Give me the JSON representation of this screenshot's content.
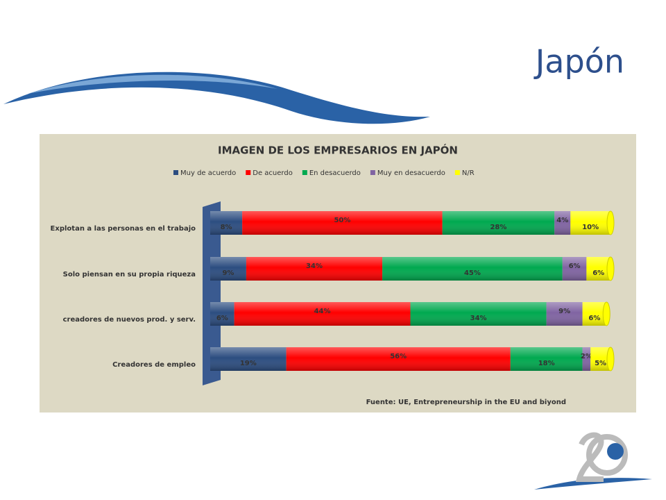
{
  "slide_title": "Japón",
  "chart_data": {
    "type": "stacked-bar-horizontal",
    "title": "IMAGEN DE LOS EMPRESARIOS EN JAPÓN",
    "categories": [
      "Explotan a las personas en el trabajo",
      "Solo piensan en su propia riqueza",
      "creadores de nuevos prod. y serv.",
      "Creadores de empleo"
    ],
    "series": [
      {
        "name": "Muy de acuerdo",
        "color": "#2c4d80",
        "values": [
          8,
          9,
          6,
          19
        ],
        "value_labels": [
          "8%",
          "9%",
          "6%",
          "19%"
        ]
      },
      {
        "name": "De acuerdo",
        "color": "#ff0000",
        "values": [
          50,
          34,
          44,
          56
        ],
        "value_labels": [
          "50%",
          "34%",
          "44%",
          "56%"
        ]
      },
      {
        "name": "En desacuerdo",
        "color": "#00a94f",
        "values": [
          28,
          45,
          34,
          18
        ],
        "value_labels": [
          "28%",
          "45%",
          "34%",
          "18%"
        ]
      },
      {
        "name": "Muy en desacuerdo",
        "color": "#8064a2",
        "values": [
          4,
          6,
          9,
          2
        ],
        "value_labels": [
          "4%",
          "6%",
          "9%",
          "2%"
        ]
      },
      {
        "name": "N/R",
        "color": "#ffff00",
        "values": [
          10,
          6,
          6,
          5
        ],
        "value_labels": [
          "10%",
          "6%",
          "6%",
          "5%"
        ]
      }
    ],
    "legend": "top",
    "source": "Fuente: UE, Entrepreneurship in the EU and biyond"
  }
}
